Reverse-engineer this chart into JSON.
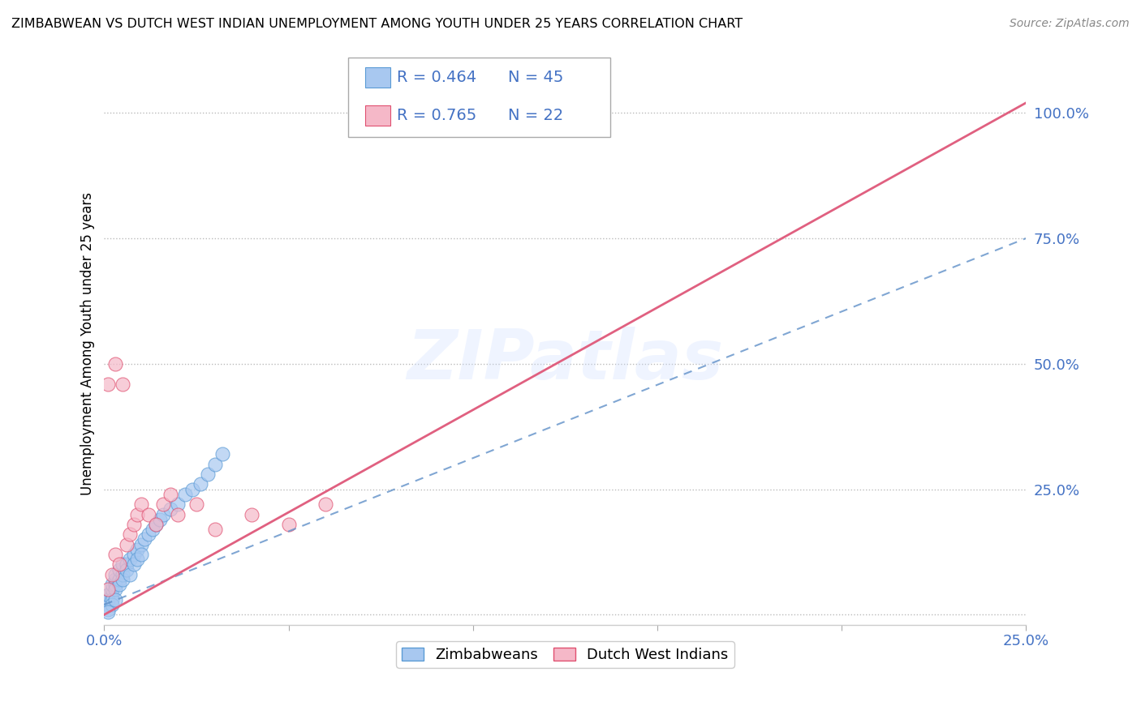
{
  "title": "ZIMBABWEAN VS DUTCH WEST INDIAN UNEMPLOYMENT AMONG YOUTH UNDER 25 YEARS CORRELATION CHART",
  "source": "Source: ZipAtlas.com",
  "ylabel": "Unemployment Among Youth under 25 years",
  "xlim": [
    0.0,
    0.25
  ],
  "ylim": [
    -0.02,
    1.1
  ],
  "xticks": [
    0.0,
    0.05,
    0.1,
    0.15,
    0.2,
    0.25
  ],
  "yticks": [
    0.0,
    0.25,
    0.5,
    0.75,
    1.0
  ],
  "xtick_labels": [
    "0.0%",
    "",
    "",
    "",
    "",
    "25.0%"
  ],
  "ytick_labels": [
    "",
    "25.0%",
    "50.0%",
    "75.0%",
    "100.0%"
  ],
  "blue_color": "#A8C8F0",
  "pink_color": "#F5B8C8",
  "blue_edge_color": "#5B9BD5",
  "pink_edge_color": "#E05070",
  "blue_line_color": "#6090C8",
  "pink_line_color": "#E06080",
  "legend_R_blue": "0.464",
  "legend_N_blue": "45",
  "legend_R_pink": "0.765",
  "legend_N_pink": "22",
  "legend_label_blue": "Zimbabweans",
  "legend_label_pink": "Dutch West Indians",
  "watermark": "ZIPatlas",
  "blue_scatter_x": [
    0.001,
    0.001,
    0.001,
    0.002,
    0.002,
    0.002,
    0.002,
    0.003,
    0.003,
    0.003,
    0.003,
    0.004,
    0.004,
    0.004,
    0.005,
    0.005,
    0.005,
    0.006,
    0.006,
    0.007,
    0.007,
    0.008,
    0.008,
    0.009,
    0.009,
    0.01,
    0.01,
    0.011,
    0.012,
    0.013,
    0.014,
    0.015,
    0.016,
    0.018,
    0.02,
    0.022,
    0.024,
    0.026,
    0.028,
    0.03,
    0.032,
    0.001,
    0.002,
    0.001,
    0.003
  ],
  "blue_scatter_y": [
    0.02,
    0.03,
    0.04,
    0.04,
    0.05,
    0.06,
    0.03,
    0.06,
    0.07,
    0.05,
    0.08,
    0.07,
    0.09,
    0.06,
    0.08,
    0.1,
    0.07,
    0.1,
    0.09,
    0.11,
    0.08,
    0.12,
    0.1,
    0.13,
    0.11,
    0.14,
    0.12,
    0.15,
    0.16,
    0.17,
    0.18,
    0.19,
    0.2,
    0.21,
    0.22,
    0.24,
    0.25,
    0.26,
    0.28,
    0.3,
    0.32,
    0.01,
    0.02,
    0.005,
    0.03
  ],
  "pink_scatter_x": [
    0.001,
    0.002,
    0.003,
    0.004,
    0.005,
    0.006,
    0.007,
    0.008,
    0.009,
    0.01,
    0.012,
    0.014,
    0.016,
    0.018,
    0.02,
    0.025,
    0.03,
    0.04,
    0.05,
    0.06,
    0.001,
    0.003
  ],
  "pink_scatter_y": [
    0.05,
    0.08,
    0.12,
    0.1,
    0.46,
    0.14,
    0.16,
    0.18,
    0.2,
    0.22,
    0.2,
    0.18,
    0.22,
    0.24,
    0.2,
    0.22,
    0.17,
    0.2,
    0.18,
    0.22,
    0.46,
    0.5
  ],
  "blue_line_x": [
    0.0,
    0.25
  ],
  "blue_line_y": [
    0.02,
    0.75
  ],
  "pink_line_x": [
    0.0,
    0.25
  ],
  "pink_line_y": [
    0.0,
    1.02
  ]
}
